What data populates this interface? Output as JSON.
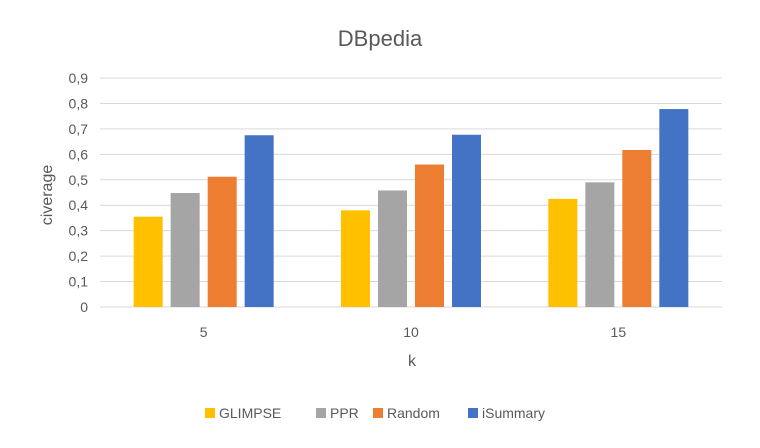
{
  "chart_data": {
    "type": "bar",
    "title": "DBpedia",
    "xlabel": "k",
    "ylabel": "civerage",
    "categories": [
      "5",
      "10",
      "15"
    ],
    "ylim": [
      0,
      0.9
    ],
    "yticks": [
      "0",
      "0,1",
      "0,2",
      "0,3",
      "0,4",
      "0,5",
      "0,6",
      "0,7",
      "0,8",
      "0,9"
    ],
    "grid": true,
    "legend_position": "bottom",
    "series": [
      {
        "name": "GLIMPSE",
        "color": "#FFC000",
        "values": [
          0.355,
          0.38,
          0.425
        ]
      },
      {
        "name": "PPR",
        "color": "#A5A5A5",
        "values": [
          0.448,
          0.458,
          0.49
        ]
      },
      {
        "name": "Random",
        "color": "#ED7D31",
        "values": [
          0.512,
          0.56,
          0.617
        ]
      },
      {
        "name": "iSummary",
        "color": "#4472C4",
        "values": [
          0.675,
          0.677,
          0.778
        ]
      }
    ]
  }
}
